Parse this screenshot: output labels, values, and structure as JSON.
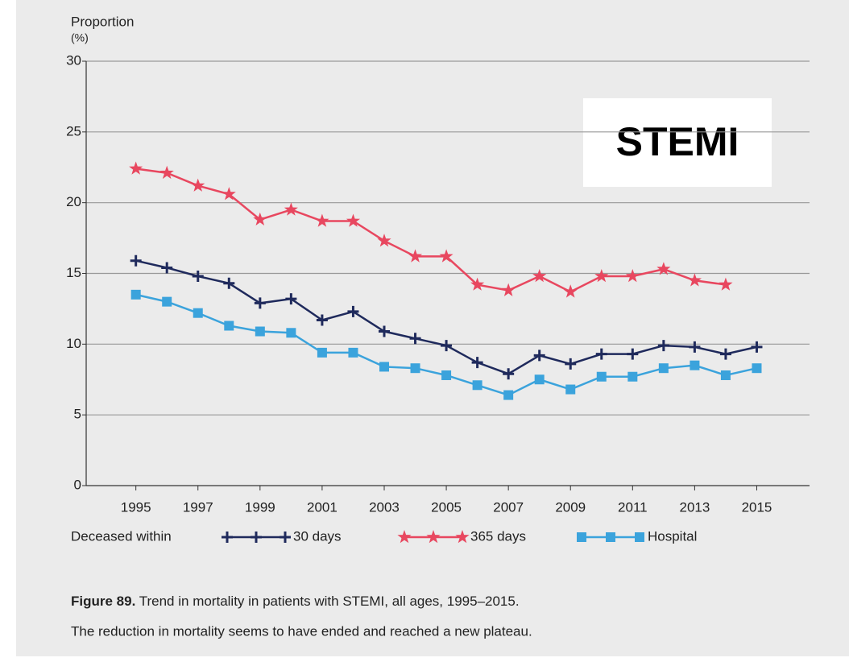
{
  "chart_data": {
    "type": "line",
    "annotation": "STEMI",
    "ylabel": [
      "Proportion",
      "(%)"
    ],
    "legend_title": "Deceased within",
    "caption_label": "Figure 89.",
    "caption": "Trend in mortality in patients with STEMI, all ages, 1995–2015.",
    "caption_note": "The reduction in mortality seems to have ended and reached a new plateau.",
    "x": [
      1995,
      1996,
      1997,
      1998,
      1999,
      2000,
      2001,
      2002,
      2003,
      2004,
      2005,
      2006,
      2007,
      2008,
      2009,
      2010,
      2011,
      2012,
      2013,
      2014,
      2015
    ],
    "xlim": [
      1993.4,
      2016.7
    ],
    "xticks": [
      1995,
      1997,
      1999,
      2001,
      2003,
      2005,
      2007,
      2009,
      2011,
      2013,
      2015
    ],
    "ylim": [
      0,
      30
    ],
    "yticks": [
      0,
      5,
      10,
      15,
      20,
      25,
      30
    ],
    "grid": true,
    "series": [
      {
        "name": "30 days",
        "color": "#1f2a5c",
        "marker": "plus",
        "values": [
          15.9,
          15.4,
          14.8,
          14.3,
          12.9,
          13.2,
          11.7,
          12.3,
          10.9,
          10.4,
          9.9,
          8.7,
          7.9,
          9.2,
          8.6,
          9.3,
          9.3,
          9.9,
          9.8,
          9.3,
          9.8
        ]
      },
      {
        "name": "365 days",
        "color": "#e8475f",
        "marker": "star",
        "values": [
          22.4,
          22.1,
          21.2,
          20.6,
          18.8,
          19.5,
          18.7,
          18.7,
          17.3,
          16.2,
          16.2,
          14.2,
          13.8,
          14.8,
          13.7,
          14.8,
          14.8,
          15.3,
          14.5,
          14.2,
          null
        ]
      },
      {
        "name": "Hospital",
        "color": "#3ba3dc",
        "marker": "square",
        "values": [
          13.5,
          13.0,
          12.2,
          11.3,
          10.9,
          10.8,
          9.4,
          9.4,
          8.4,
          8.3,
          7.8,
          7.1,
          6.4,
          7.5,
          6.8,
          7.7,
          7.7,
          8.3,
          8.5,
          7.8,
          8.3
        ]
      }
    ]
  }
}
